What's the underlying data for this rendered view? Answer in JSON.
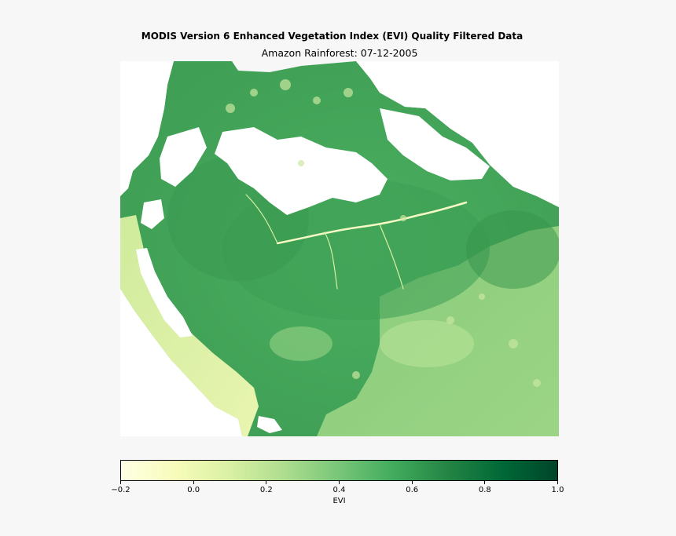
{
  "title": "MODIS Version 6 Enhanced Vegetation Index (EVI) Quality Filtered Data",
  "subtitle": "Amazon Rainforest: 07-12-2005",
  "colorbar": {
    "label": "EVI",
    "colormap": [
      "#ffffe5",
      "#f7fcb9",
      "#d9f0a3",
      "#addd8e",
      "#78c679",
      "#41ab5d",
      "#238443",
      "#006837",
      "#004529"
    ],
    "range": [
      -0.2,
      1.0
    ],
    "ticks": [
      {
        "value": -0.2,
        "label": "−0.2"
      },
      {
        "value": 0.0,
        "label": "0.0"
      },
      {
        "value": 0.2,
        "label": "0.2"
      },
      {
        "value": 0.4,
        "label": "0.4"
      },
      {
        "value": 0.6,
        "label": "0.6"
      },
      {
        "value": 0.8,
        "label": "0.8"
      },
      {
        "value": 1.0,
        "label": "1.0"
      }
    ]
  },
  "map": {
    "region": "Amazon Rainforest",
    "no_data_color": "#ffffff",
    "typical_evi_forest": 0.55,
    "typical_evi_andes": 0.2,
    "typical_evi_savanna": 0.35
  }
}
